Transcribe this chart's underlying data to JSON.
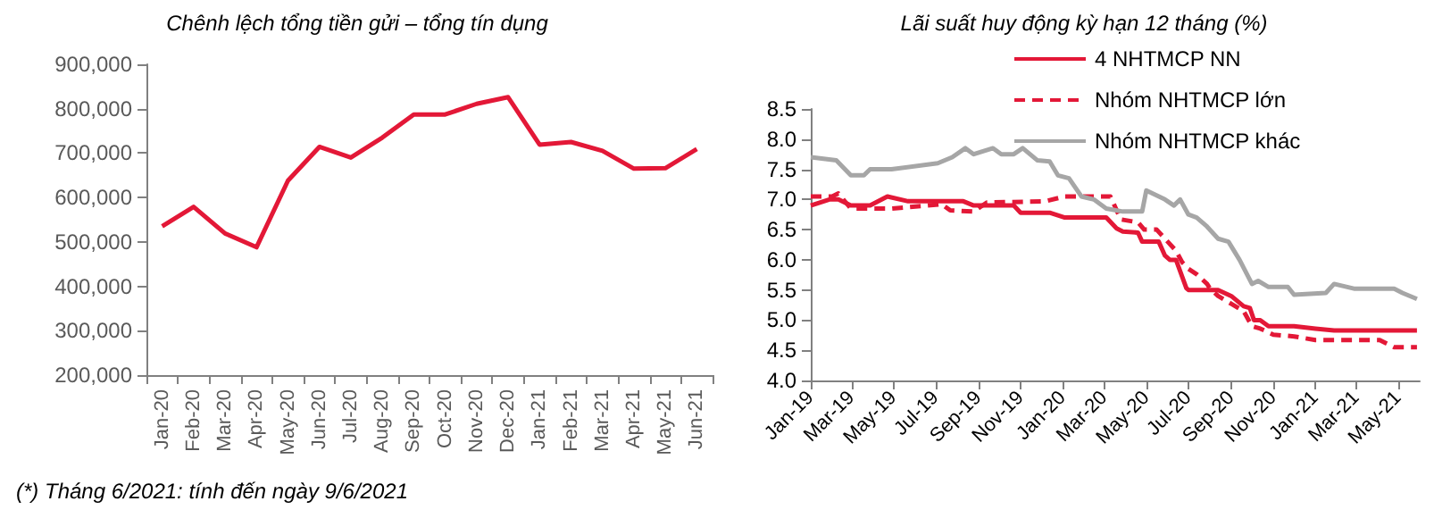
{
  "chart_data": [
    {
      "type": "line",
      "title": "Chênh lệch tổng tiền gửi – tổng tín dụng",
      "categories": [
        "Jan-20",
        "Feb-20",
        "Mar-20",
        "Apr-20",
        "May-20",
        "Jun-20",
        "Jul-20",
        "Aug-20",
        "Sep-20",
        "Oct-20",
        "Nov-20",
        "Dec-20",
        "Jan-21",
        "Feb-21",
        "Mar-21",
        "Apr-21",
        "May-21",
        "Jun-21"
      ],
      "series": [
        {
          "color": "#e31837",
          "values": [
            535000,
            579000,
            519000,
            488000,
            638000,
            714000,
            690000,
            735000,
            787000,
            787000,
            811000,
            826000,
            719000,
            725000,
            705000,
            665000,
            666000,
            709000
          ]
        }
      ],
      "ylim": [
        200000,
        900000
      ],
      "yticks": [
        {
          "value": 200000,
          "label": "200,000"
        },
        {
          "value": 300000,
          "label": "300,000"
        },
        {
          "value": 400000,
          "label": "400,000"
        },
        {
          "value": 500000,
          "label": "500,000"
        },
        {
          "value": 600000,
          "label": "600,000"
        },
        {
          "value": 700000,
          "label": "700,000"
        },
        {
          "value": 800000,
          "label": "800,000"
        },
        {
          "value": 900000,
          "label": "900,000"
        }
      ],
      "marker": "none",
      "annotations": [
        "(*) Tháng 6/2021: tính đến ngày 9/6/2021"
      ]
    },
    {
      "type": "line",
      "title": "Lãi suất huy động kỳ hạn 12 tháng (%)",
      "legend": "top right",
      "marker": "none",
      "xlim": [
        "2019-01-01",
        "2021-06-01"
      ],
      "xticks": [
        {
          "value": "2019-01",
          "label": "Jan-19"
        },
        {
          "value": "2019-03",
          "label": "Mar-19"
        },
        {
          "value": "2019-05",
          "label": "May-19"
        },
        {
          "value": "2019-07",
          "label": "Jul-19"
        },
        {
          "value": "2019-09",
          "label": "Sep-19"
        },
        {
          "value": "2019-11",
          "label": "Nov-19"
        },
        {
          "value": "2020-01",
          "label": "Jan-20"
        },
        {
          "value": "2020-03",
          "label": "Mar-20"
        },
        {
          "value": "2020-05",
          "label": "May-20"
        },
        {
          "value": "2020-07",
          "label": "Jul-20"
        },
        {
          "value": "2020-09",
          "label": "Sep-20"
        },
        {
          "value": "2020-11",
          "label": "Nov-20"
        },
        {
          "value": "2021-01",
          "label": "Jan-21"
        },
        {
          "value": "2021-03",
          "label": "Mar-21"
        },
        {
          "value": "2021-05",
          "label": "May-21"
        }
      ],
      "ylim": [
        4.0,
        8.5
      ],
      "yticks": [
        {
          "value": 4,
          "label": "4.0"
        },
        {
          "value": 4.5,
          "label": "4.5"
        },
        {
          "value": 5,
          "label": "5.0"
        },
        {
          "value": 5.5,
          "label": "5.5"
        },
        {
          "value": 6,
          "label": "6.0"
        },
        {
          "value": 6.5,
          "label": "6.5"
        },
        {
          "value": 7,
          "label": "7.0"
        },
        {
          "value": 7.5,
          "label": "7.5"
        },
        {
          "value": 8,
          "label": "8.0"
        },
        {
          "value": 8.5,
          "label": "8.5"
        }
      ],
      "series": [
        {
          "name": "4 NHTMCP NN",
          "color": "#e31837",
          "line_style": "solid",
          "x": [
            "2019-01-01",
            "2019-01-28",
            "2019-02-10",
            "2019-02-28",
            "2019-03-28",
            "2019-04-22",
            "2019-05-22",
            "2019-08-10",
            "2019-08-25",
            "2019-10-22",
            "2019-11-01",
            "2019-12-13",
            "2020-01-04",
            "2020-03-04",
            "2020-03-19",
            "2020-03-28",
            "2020-04-19",
            "2020-04-25",
            "2020-05-19",
            "2020-05-28",
            "2020-06-04",
            "2020-06-13",
            "2020-06-28",
            "2020-07-01",
            "2020-08-13",
            "2020-09-01",
            "2020-09-19",
            "2020-09-28",
            "2020-10-04",
            "2020-10-13",
            "2020-10-25",
            "2020-12-01",
            "2021-01-01",
            "2021-01-28",
            "2021-05-28"
          ],
          "values": [
            6.9,
            7.0,
            7.0,
            6.9,
            6.9,
            7.05,
            6.97,
            6.97,
            6.9,
            6.9,
            6.78,
            6.78,
            6.7,
            6.7,
            6.52,
            6.47,
            6.45,
            6.3,
            6.3,
            6.07,
            6.0,
            6.0,
            5.53,
            5.5,
            5.5,
            5.4,
            5.23,
            5.2,
            5.0,
            5.0,
            4.9,
            4.9,
            4.86,
            4.83,
            4.83
          ]
        },
        {
          "name": "Nhóm NHTMCP lớn",
          "color": "#e31837",
          "line_style": "dashed",
          "x": [
            "2019-01-01",
            "2019-02-01",
            "2019-02-10",
            "2019-02-28",
            "2019-04-28",
            "2019-06-19",
            "2019-07-10",
            "2019-07-22",
            "2019-08-25",
            "2019-09-13",
            "2019-12-07",
            "2020-01-04",
            "2020-03-10",
            "2020-03-25",
            "2020-04-19",
            "2020-04-28",
            "2020-05-16",
            "2020-06-01",
            "2020-06-13",
            "2020-06-22",
            "2020-07-01",
            "2020-07-13",
            "2020-07-28",
            "2020-08-01",
            "2020-08-13",
            "2020-09-01",
            "2020-09-19",
            "2020-10-01",
            "2020-10-13",
            "2020-11-01",
            "2020-12-01",
            "2021-01-01",
            "2021-04-04",
            "2021-04-25",
            "2021-05-28"
          ],
          "values": [
            7.05,
            7.05,
            7.1,
            6.85,
            6.85,
            6.9,
            6.92,
            6.82,
            6.8,
            6.95,
            6.97,
            7.05,
            7.05,
            6.67,
            6.62,
            6.5,
            6.5,
            6.3,
            6.15,
            5.96,
            5.85,
            5.76,
            5.6,
            5.53,
            5.4,
            5.27,
            5.15,
            4.9,
            4.86,
            4.76,
            4.73,
            4.67,
            4.67,
            4.55,
            4.55
          ]
        },
        {
          "name": "Nhóm NHTMCP khác",
          "color": "#a6a6a6",
          "line_style": "solid",
          "x": [
            "2019-01-01",
            "2019-02-07",
            "2019-02-28",
            "2019-03-19",
            "2019-03-28",
            "2019-04-28",
            "2019-07-04",
            "2019-07-25",
            "2019-08-13",
            "2019-08-25",
            "2019-09-22",
            "2019-10-04",
            "2019-10-22",
            "2019-11-04",
            "2019-11-25",
            "2019-12-13",
            "2019-12-25",
            "2020-01-10",
            "2020-01-28",
            "2020-02-15",
            "2020-03-04",
            "2020-03-28",
            "2020-04-25",
            "2020-05-01",
            "2020-05-28",
            "2020-06-10",
            "2020-06-19",
            "2020-07-01",
            "2020-07-13",
            "2020-07-28",
            "2020-08-13",
            "2020-08-28",
            "2020-09-13",
            "2020-10-01",
            "2020-10-10",
            "2020-10-25",
            "2020-11-22",
            "2020-12-01",
            "2021-01-16",
            "2021-01-28",
            "2021-02-27",
            "2021-04-25",
            "2021-05-07",
            "2021-05-28"
          ],
          "values": [
            7.7,
            7.65,
            7.4,
            7.4,
            7.5,
            7.5,
            7.6,
            7.7,
            7.85,
            7.75,
            7.85,
            7.75,
            7.75,
            7.85,
            7.65,
            7.63,
            7.4,
            7.35,
            7.05,
            7.0,
            6.85,
            6.8,
            6.8,
            7.15,
            7.0,
            6.9,
            7.0,
            6.75,
            6.7,
            6.55,
            6.35,
            6.3,
            6.0,
            5.6,
            5.65,
            5.55,
            5.55,
            5.42,
            5.45,
            5.6,
            5.52,
            5.52,
            5.45,
            5.35
          ]
        }
      ]
    }
  ]
}
